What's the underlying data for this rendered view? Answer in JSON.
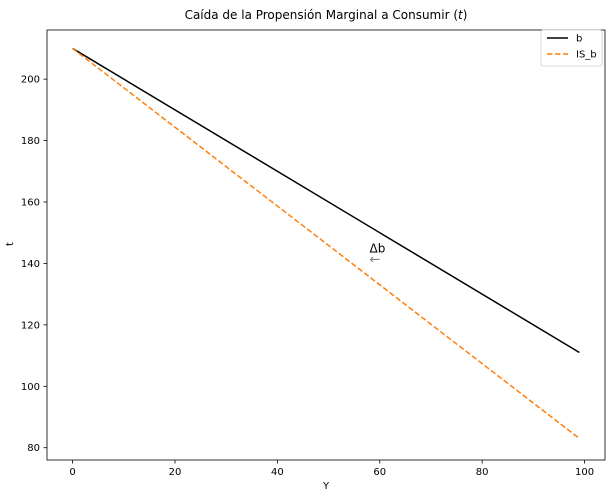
{
  "chart_data": {
    "type": "line",
    "title": "Caída de la Propensión Marginal a Consumir (t)",
    "title_prefix": "Caída de la Propensión Marginal a Consumir (",
    "title_var": "t",
    "title_suffix": ")",
    "xlabel": "Y",
    "ylabel": "t",
    "xlim": [
      -5,
      104
    ],
    "ylim": [
      76,
      216
    ],
    "xticks": [
      0,
      20,
      40,
      60,
      80,
      100
    ],
    "yticks": [
      80,
      100,
      120,
      140,
      160,
      180,
      200
    ],
    "grid": false,
    "legend_position": "top-right",
    "series": [
      {
        "name": "b",
        "color": "#000000",
        "style": "solid",
        "x": [
          0,
          99
        ],
        "y": [
          210,
          111
        ]
      },
      {
        "name": "IS_b",
        "color": "#ff7f0e",
        "style": "dashed",
        "x": [
          0,
          99
        ],
        "y": [
          210,
          83
        ]
      }
    ],
    "annotations": [
      {
        "text": "Δb",
        "arrow": "←",
        "x": 58,
        "y": 141
      }
    ]
  }
}
